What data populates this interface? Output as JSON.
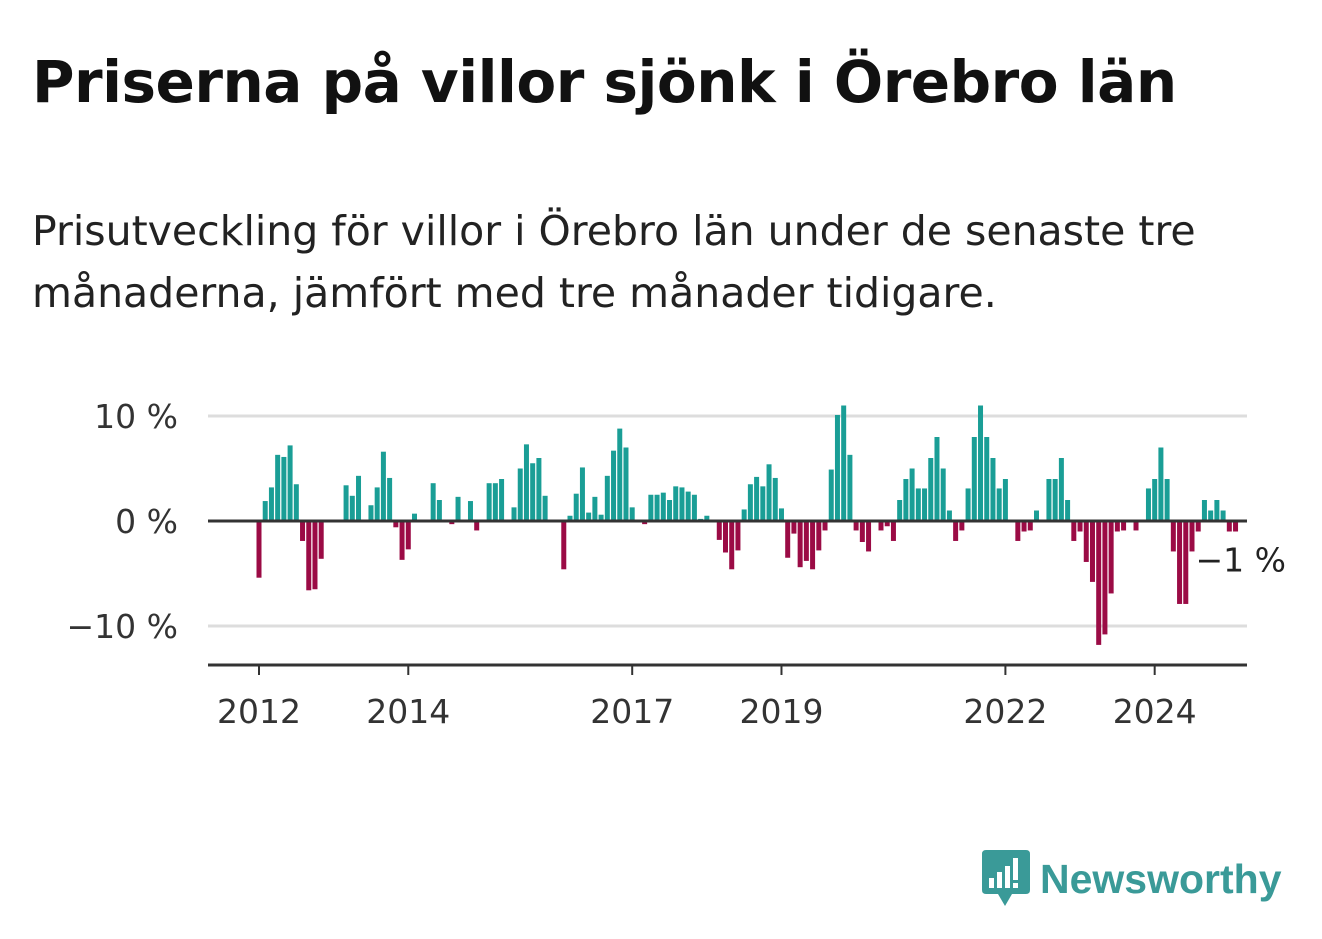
{
  "title": "Priserna på villor sjönk i Örebro län",
  "subtitle": "Prisutveckling för villor i Örebro län under de senaste tre månaderna, jämfört med tre månader tidigare.",
  "brand": {
    "name": "Newsworthy",
    "icon": "newsworthy-logo-icon",
    "color": "#3a9a98"
  },
  "colors": {
    "positive": "#1a9e96",
    "negative": "#9b0b45",
    "grid": "#dddddd",
    "axis": "#333333"
  },
  "chart_data": {
    "type": "bar",
    "start": "2011-05",
    "ylim": [
      -13,
      10.5
    ],
    "yticks": [
      {
        "value": 10,
        "label": "10 %"
      },
      {
        "value": 0,
        "label": "0 %"
      },
      {
        "value": -10,
        "label": "−10 %"
      }
    ],
    "xticks": [
      {
        "month": "2012-01",
        "label": "2012"
      },
      {
        "month": "2014-01",
        "label": "2014"
      },
      {
        "month": "2017-01",
        "label": "2017"
      },
      {
        "month": "2019-01",
        "label": "2019"
      },
      {
        "month": "2022-01",
        "label": "2022"
      },
      {
        "month": "2024-01",
        "label": "2024"
      }
    ],
    "last_value_label": "−1 %",
    "grid": true,
    "values": [
      0,
      0,
      0,
      0,
      0,
      0,
      0,
      0,
      -5.4,
      1.9,
      3.2,
      6.3,
      6.1,
      7.2,
      3.5,
      -1.9,
      -6.6,
      -6.5,
      -3.6,
      0,
      0,
      0,
      3.4,
      2.4,
      4.3,
      0,
      1.5,
      3.2,
      6.6,
      4.1,
      -0.6,
      -3.7,
      -2.7,
      0.7,
      0,
      0,
      3.6,
      2,
      0,
      -0.3,
      2.3,
      0,
      1.9,
      -0.9,
      0,
      3.6,
      3.6,
      4,
      0,
      1.3,
      5,
      7.3,
      5.5,
      6,
      2.4,
      0,
      0,
      -4.6,
      0.5,
      2.6,
      5.1,
      0.8,
      2.3,
      0.6,
      4.3,
      6.7,
      8.8,
      7,
      1.3,
      0,
      -0.3,
      2.5,
      2.5,
      2.7,
      2,
      3.3,
      3.2,
      2.8,
      2.5,
      0.2,
      0.5,
      0,
      -1.8,
      -3,
      -4.6,
      -2.8,
      1.1,
      3.5,
      4.2,
      3.3,
      5.4,
      4.1,
      1.2,
      -3.5,
      -1.2,
      -4.4,
      -3.8,
      -4.6,
      -2.8,
      -0.9,
      4.9,
      10.1,
      11,
      6.3,
      -0.9,
      -2,
      -2.9,
      0,
      -0.9,
      -0.5,
      -1.9,
      2,
      4,
      5,
      3.1,
      3.1,
      6,
      8,
      5,
      1,
      -1.9,
      -0.9,
      3.1,
      8,
      11,
      8,
      6,
      3.1,
      4,
      0,
      -1.9,
      -1,
      -0.9,
      1,
      0,
      4,
      4,
      6,
      2,
      -1.9,
      -1,
      -3.9,
      -5.8,
      -11.8,
      -10.8,
      -6.9,
      -1,
      -0.9,
      0,
      -0.9,
      0,
      3.1,
      4,
      7,
      4,
      -2.9,
      -7.9,
      -7.9,
      -2.9,
      -1,
      2,
      1,
      2,
      1,
      -1,
      -1
    ]
  }
}
